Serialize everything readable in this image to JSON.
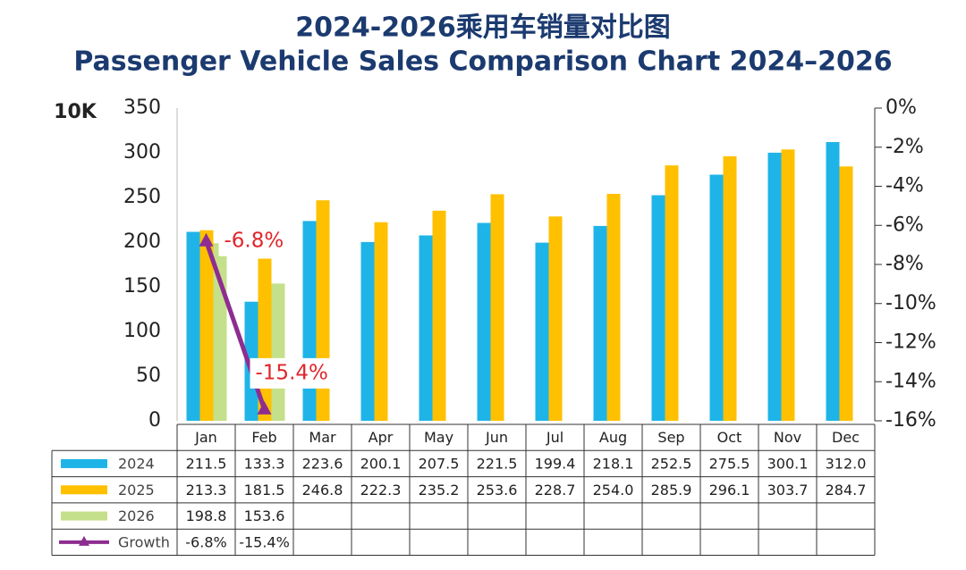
{
  "chart_data": {
    "type": "bar",
    "title": "2024-2026乘用车销量对比图",
    "subtitle": "Passenger Vehicle Sales Comparison Chart 2024–2026",
    "y_label": "10K",
    "categories": [
      "Jan",
      "Feb",
      "Mar",
      "Apr",
      "May",
      "Jun",
      "Jul",
      "Aug",
      "Sep",
      "Oct",
      "Nov",
      "Dec"
    ],
    "series": [
      {
        "name": "2024",
        "color": "#1fb4e8",
        "values": [
          211.5,
          133.3,
          223.6,
          200.1,
          207.5,
          221.5,
          199.4,
          218.1,
          252.5,
          275.5,
          300.1,
          312.0
        ],
        "value_labels": [
          "211.5",
          "133.3",
          "223.6",
          "200.1",
          "207.5",
          "221.5",
          "199.4",
          "218.1",
          "252.5",
          "275.5",
          "300.1",
          "312.0"
        ]
      },
      {
        "name": "2025",
        "color": "#ffc000",
        "values": [
          213.3,
          181.5,
          246.8,
          222.3,
          235.2,
          253.6,
          228.7,
          254.0,
          285.9,
          296.1,
          303.7,
          284.7
        ],
        "value_labels": [
          "213.3",
          "181.5",
          "246.8",
          "222.3",
          "235.2",
          "253.6",
          "228.7",
          "254.0",
          "285.9",
          "296.1",
          "303.7",
          "284.7"
        ]
      },
      {
        "name": "2026",
        "color": "#c5e08a",
        "values": [
          198.8,
          153.6,
          null,
          null,
          null,
          null,
          null,
          null,
          null,
          null,
          null,
          null
        ],
        "value_labels": [
          "198.8",
          "153.6",
          null,
          null,
          null,
          null,
          null,
          null,
          null,
          null,
          null,
          null
        ]
      },
      {
        "name": "Growth",
        "color": "#8e2d91",
        "type": "line",
        "axis": "y2",
        "values": [
          -6.8,
          -15.4,
          null,
          null,
          null,
          null,
          null,
          null,
          null,
          null,
          null,
          null
        ],
        "value_labels": [
          "-6.8%",
          "-15.4%",
          null,
          null,
          null,
          null,
          null,
          null,
          null,
          null,
          null,
          null
        ]
      }
    ],
    "ylim": [
      0,
      350
    ],
    "yticks": [
      0,
      50,
      100,
      150,
      200,
      250,
      300,
      350
    ],
    "y2lim": [
      -16,
      0
    ],
    "y2ticks": [
      {
        "value": 0,
        "label": "0%"
      },
      {
        "value": -2,
        "label": "-2%"
      },
      {
        "value": -4,
        "label": "-4%"
      },
      {
        "value": -6,
        "label": "-6%"
      },
      {
        "value": -8,
        "label": "-8%"
      },
      {
        "value": -10,
        "label": "-10%"
      },
      {
        "value": -12,
        "label": "-12%"
      },
      {
        "value": -14,
        "label": "-14%"
      },
      {
        "value": -16,
        "label": "-16%"
      }
    ],
    "grid": false,
    "data_table": true
  }
}
